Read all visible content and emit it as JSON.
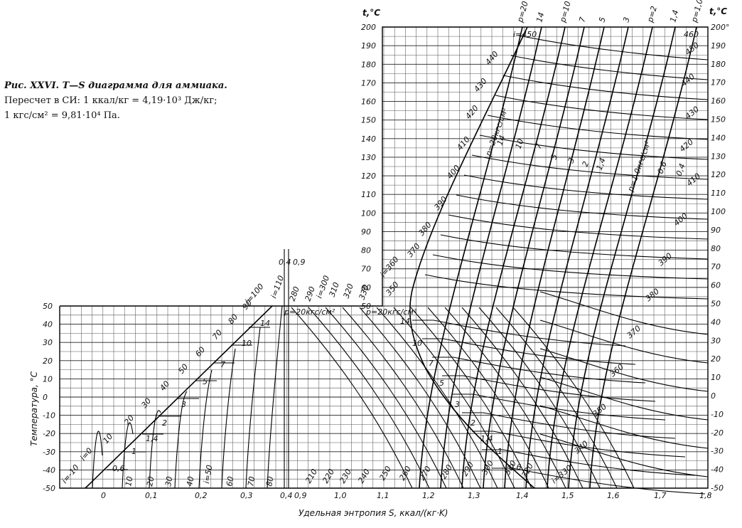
{
  "caption": {
    "line1": "Рис. XXVI. T—S диаграмма для аммиака.",
    "line2": "Пересчет   в   СИ:  1  ккал/кг = 4,19·10³  Дж/кг;",
    "line3": "1 кгс/см² = 9,81·10⁴ Па."
  },
  "axes": {
    "x_label": "Удельная энтропия S, ккал/(кг·K)",
    "y_label": "Температура, °C",
    "t_label_left": "t,°C",
    "t_label_right": "t,°C",
    "lower_t_ticks": [
      "50",
      "40",
      "30",
      "20",
      "10",
      "0",
      "-10",
      "-20",
      "-30",
      "-40",
      "-50"
    ],
    "upper_t_ticks_left": [
      "200",
      "190",
      "180",
      "170",
      "160",
      "150",
      "140",
      "130",
      "120",
      "110",
      "100",
      "90",
      "80",
      "70",
      "60",
      "50"
    ],
    "upper_t_ticks_right": [
      "200°",
      "190",
      "180",
      "170",
      "160",
      "150",
      "140",
      "130",
      "120",
      "110",
      "100",
      "90",
      "80",
      "70",
      "60",
      "50",
      "40",
      "30",
      "20",
      "10",
      "0",
      "-10",
      "-20",
      "-30",
      "-40",
      "-50"
    ],
    "s_ticks_left": [
      "0",
      "0,1",
      "0,2",
      "0,3",
      "0,4"
    ],
    "s_ticks_right": [
      "0,9",
      "1,0",
      "1,1",
      "1,2",
      "1,3",
      "1,4",
      "1,5",
      "1,6",
      "1,7",
      "1,8"
    ],
    "break_labels": [
      "0,4",
      "0,9"
    ]
  },
  "isobar_labels": {
    "top": [
      "p=20",
      "14",
      "p=10",
      "7",
      "5",
      "3",
      "p=2",
      "1,4",
      "p=1,0"
    ],
    "upper_vertical": [
      "p=20кгс/см²",
      "p=1,0кгс/см²",
      "14",
      "10",
      "7",
      "5",
      "3",
      "2",
      "1,4",
      "0,6",
      "0,4"
    ],
    "upper_right": [
      "0,6",
      "0,4"
    ],
    "superheat_region": [
      "p=20кгс/см²",
      "p=20кгс/см²"
    ],
    "lower_right": [
      "14",
      "10",
      "7",
      "5",
      "3",
      "2",
      "1,4",
      "1",
      "0,6"
    ],
    "lower_left": [
      "14",
      "10",
      "7",
      "5",
      "3",
      "2",
      "1,4",
      "1",
      "0,6"
    ]
  },
  "enthalpy_labels": {
    "top": [
      "i=450",
      "460"
    ],
    "left_series": [
      "440",
      "430",
      "420",
      "410",
      "400",
      "390",
      "380",
      "370",
      "i=360",
      "350"
    ],
    "right_series": [
      "450",
      "440",
      "430",
      "420",
      "410",
      "400",
      "390",
      "380",
      "370",
      "360",
      "350",
      "340",
      "i=330"
    ],
    "liquid_series": [
      "i=-10",
      "i=0",
      "10",
      "20",
      "30",
      "40",
      "50",
      "60",
      "70",
      "80",
      "90",
      "i=100"
    ],
    "bottom_series": [
      "10",
      "20",
      "30",
      "40",
      "i=50",
      "60",
      "70",
      "80"
    ],
    "mid_series": [
      "i=110",
      "280",
      "290",
      "i=300",
      "310",
      "320",
      "330"
    ],
    "bottom_right_series": [
      "210",
      "220",
      "230",
      "240",
      "250",
      "260",
      "270",
      "280",
      "290",
      "300",
      "310",
      "320"
    ]
  }
}
